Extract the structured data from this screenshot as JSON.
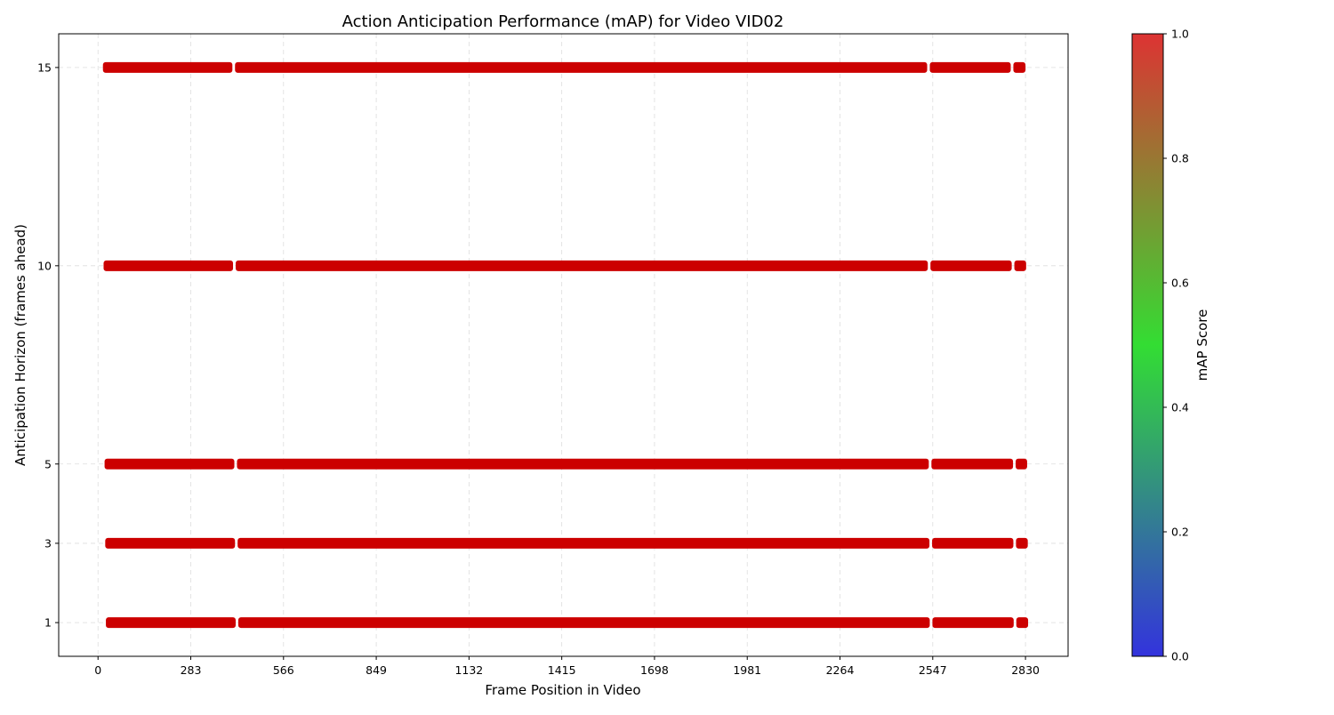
{
  "chart_data": {
    "type": "scatter",
    "title": "Action Anticipation Performance (mAP) for Video VID02",
    "xlabel": "Frame Position in Video",
    "ylabel": "Anticipation Horizon (frames ahead)",
    "xlim": [
      -120,
      2960
    ],
    "ylim": [
      0.15,
      15.85
    ],
    "x_ticks": [
      0,
      283,
      566,
      849,
      1132,
      1415,
      1698,
      1981,
      2264,
      2547,
      2830
    ],
    "y_ticks": [
      1,
      3,
      5,
      10,
      15
    ],
    "grid": true,
    "colorbar": {
      "label": "mAP Score",
      "range": [
        0.0,
        1.0
      ],
      "ticks": [
        "0.0",
        "0.2",
        "0.4",
        "0.6",
        "0.8",
        "1.0"
      ],
      "colors": [
        "#3333dd",
        "#33dd33",
        "#dd3333"
      ]
    },
    "marker_color": "#cc0000",
    "series": [
      {
        "horizon": 15,
        "map": 1.0,
        "segments": [
          [
            15,
            410
          ],
          [
            418,
            2530
          ],
          [
            2538,
            2785
          ],
          [
            2793,
            2830
          ]
        ]
      },
      {
        "horizon": 10,
        "map": 1.0,
        "segments": [
          [
            17,
            412
          ],
          [
            420,
            2532
          ],
          [
            2540,
            2788
          ],
          [
            2796,
            2832
          ]
        ]
      },
      {
        "horizon": 5,
        "map": 1.0,
        "segments": [
          [
            20,
            416
          ],
          [
            424,
            2535
          ],
          [
            2543,
            2792
          ],
          [
            2800,
            2835
          ]
        ]
      },
      {
        "horizon": 3,
        "map": 1.0,
        "segments": [
          [
            22,
            418
          ],
          [
            426,
            2537
          ],
          [
            2545,
            2793
          ],
          [
            2801,
            2837
          ]
        ]
      },
      {
        "horizon": 1,
        "map": 1.0,
        "segments": [
          [
            24,
            420
          ],
          [
            428,
            2538
          ],
          [
            2546,
            2794
          ],
          [
            2802,
            2838
          ]
        ]
      }
    ]
  }
}
